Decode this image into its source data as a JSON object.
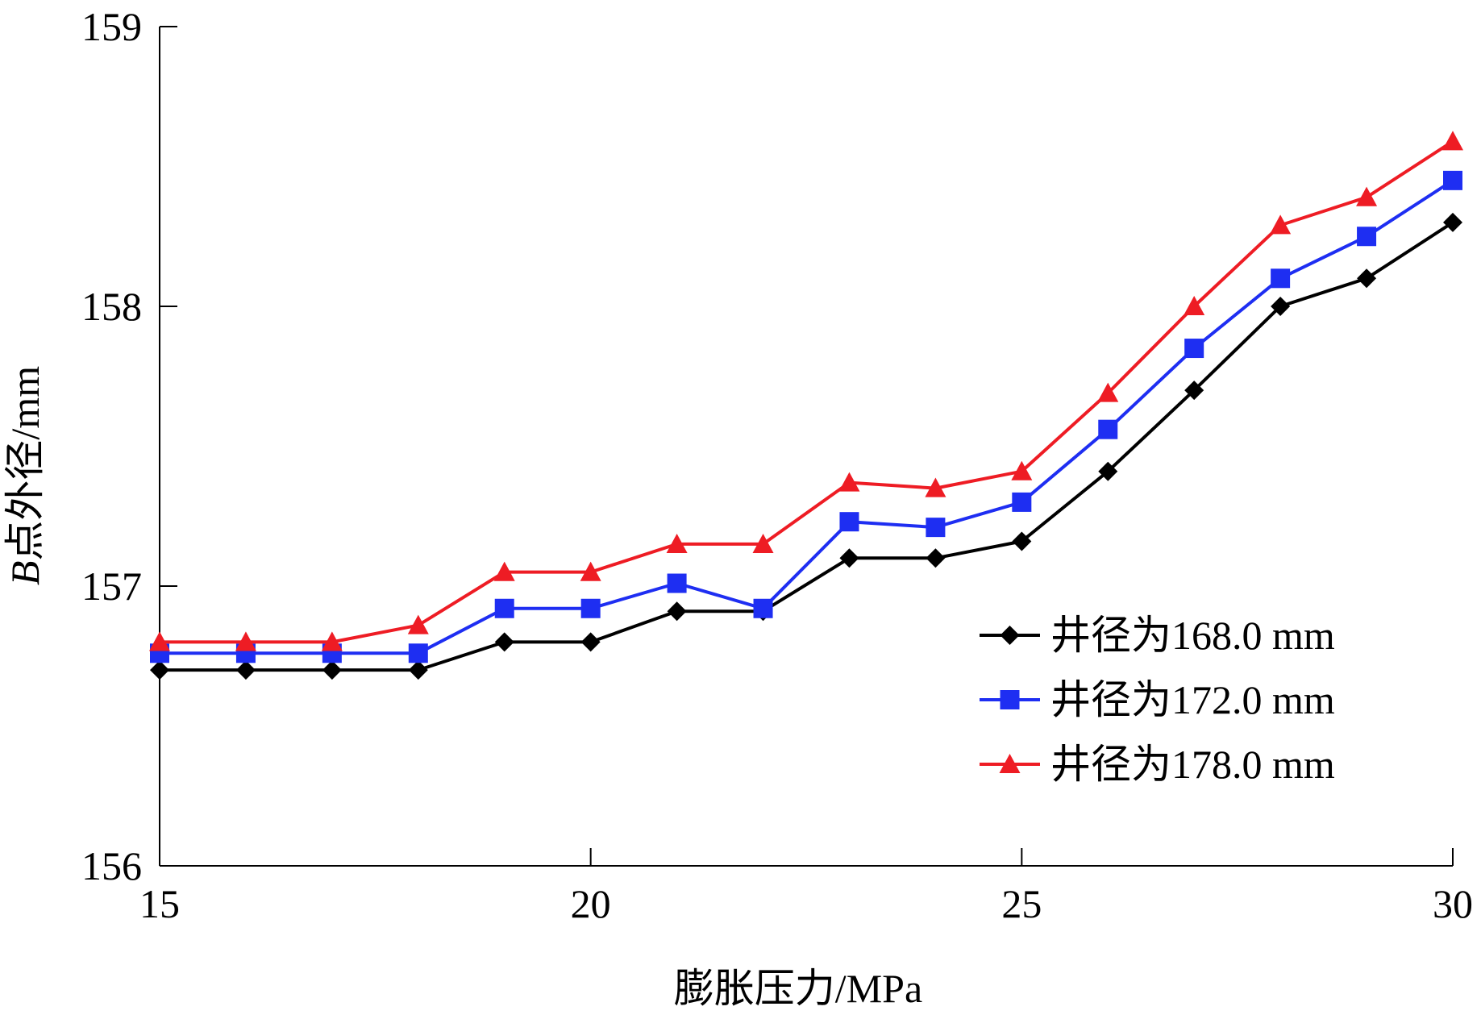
{
  "chart_data": {
    "type": "line",
    "title": "",
    "xlabel": "膨胀压力/MPa",
    "ylabel_italic": "B",
    "ylabel_rest": "点外径/mm",
    "xlim": [
      15,
      30
    ],
    "ylim": [
      156,
      159
    ],
    "xticks": [
      "15",
      "20",
      "25",
      "30"
    ],
    "yticks": [
      "156",
      "157",
      "158",
      "159"
    ],
    "grid": false,
    "legend_position": "right",
    "x": [
      15,
      16,
      17,
      18,
      19,
      20,
      21,
      22,
      23,
      24,
      25,
      26,
      27,
      28,
      29,
      30
    ],
    "series": [
      {
        "name": "井径为168.0 mm",
        "color": "#000000",
        "marker": "diamond",
        "values": [
          156.7,
          156.7,
          156.7,
          156.7,
          156.8,
          156.8,
          156.91,
          156.91,
          157.1,
          157.1,
          157.16,
          157.41,
          157.7,
          158.0,
          158.1,
          158.3
        ]
      },
      {
        "name": "井径为172.0 mm",
        "color": "#1e2ef2",
        "marker": "square",
        "values": [
          156.76,
          156.76,
          156.76,
          156.76,
          156.92,
          156.92,
          157.01,
          156.92,
          157.23,
          157.21,
          157.3,
          157.56,
          157.85,
          158.1,
          158.25,
          158.45
        ]
      },
      {
        "name": "井径为178.0 mm",
        "color": "#ee1c24",
        "marker": "triangle",
        "values": [
          156.8,
          156.8,
          156.8,
          156.86,
          157.05,
          157.05,
          157.15,
          157.15,
          157.37,
          157.35,
          157.41,
          157.69,
          158.0,
          158.29,
          158.39,
          158.59
        ]
      }
    ]
  }
}
